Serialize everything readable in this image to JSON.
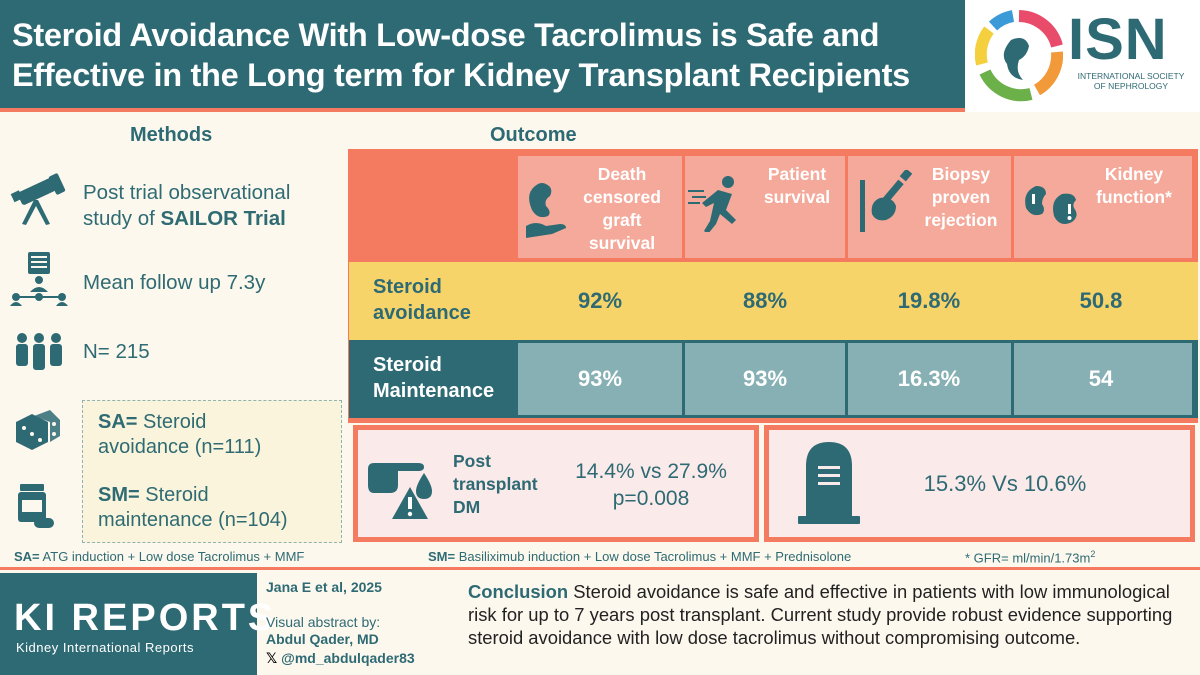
{
  "header": {
    "title_line1": "Steroid Avoidance With Low-dose Tacrolimus is Safe and",
    "title_line2": "Effective in the Long term for Kidney Transplant Recipients"
  },
  "logo": {
    "name": "ISN",
    "subtitle_line1": "INTERNATIONAL SOCIETY",
    "subtitle_line2": "OF NEPHROLOGY"
  },
  "methods": {
    "title": "Methods",
    "items": [
      {
        "line1": "Post trial observational",
        "line2_prefix": "study of ",
        "line2_bold": "SAILOR Trial",
        "icon": "telescope-icon"
      },
      {
        "text": "Mean follow up 7.3y",
        "icon": "follow-up-icon"
      },
      {
        "text": "N= 215",
        "icon": "people-icon"
      }
    ],
    "definitions": {
      "sa_bold": "SA=",
      "sa_rest_line1": " Steroid",
      "sa_line2": "avoidance (n=111)",
      "sm_bold": "SM=",
      "sm_rest_line1": " Steroid",
      "sm_line2": "maintenance (n=104)"
    }
  },
  "outcome": {
    "title": "Outcome",
    "columns": [
      {
        "lines": [
          "Death",
          "censored",
          "graft",
          "survival"
        ],
        "icon": "kidney-hand-icon"
      },
      {
        "lines": [
          "Patient",
          "survival"
        ],
        "icon": "running-person-icon"
      },
      {
        "lines": [
          "Biopsy",
          "proven",
          "rejection"
        ],
        "icon": "biopsy-needle-icon"
      },
      {
        "lines": [
          "Kidney",
          "function*"
        ],
        "icon": "kidneys-icon"
      }
    ],
    "rows": [
      {
        "label_line1": "Steroid",
        "label_line2": "avoidance",
        "values": [
          "92%",
          "88%",
          "19.8%",
          "50.8"
        ]
      },
      {
        "label_line1": "Steroid",
        "label_line2": "Maintenance",
        "values": [
          "93%",
          "93%",
          "16.3%",
          "54"
        ]
      }
    ],
    "dm_panel": {
      "label_line1": "Post",
      "label_line2": "transplant",
      "label_line3": "DM",
      "value_line1": "14.4% vs 27.9%",
      "value_line2": "p=0.008",
      "icon": "glucose-drop-icon"
    },
    "death_panel": {
      "value": "15.3% Vs 10.6%",
      "icon": "tombstone-icon"
    }
  },
  "footnotes": {
    "sa_bold": "SA=",
    "sa_text": " ATG induction + Low dose Tacrolimus + MMF",
    "sm_bold": "SM=",
    "sm_text": " Basiliximub induction + Low dose Tacrolimus + MMF + Prednisolone",
    "gfr": "* GFR= ml/min/1.73m",
    "gfr_sup": "2"
  },
  "footer": {
    "journal_name": "KI REPORTS",
    "journal_sub": "Kidney International Reports",
    "citation": "Jana E et al, 2025",
    "abstract_by": "Visual abstract by:",
    "author": "Abdul Qader, MD",
    "handle": "@md_abdulqader83",
    "conclusion_label": "Conclusion",
    "conclusion_text": " Steroid avoidance is safe and effective in patients with low immunological risk for up to 7 years post transplant. Current study provide robust evidence supporting steroid avoidance with low dose tacrolimus without compromising outcome."
  },
  "colors": {
    "teal": "#2e6a74",
    "coral": "#f47b5f",
    "yellow": "#f7d46a",
    "teal_light": "#87b0b5",
    "pink_light": "#f4a99a"
  }
}
